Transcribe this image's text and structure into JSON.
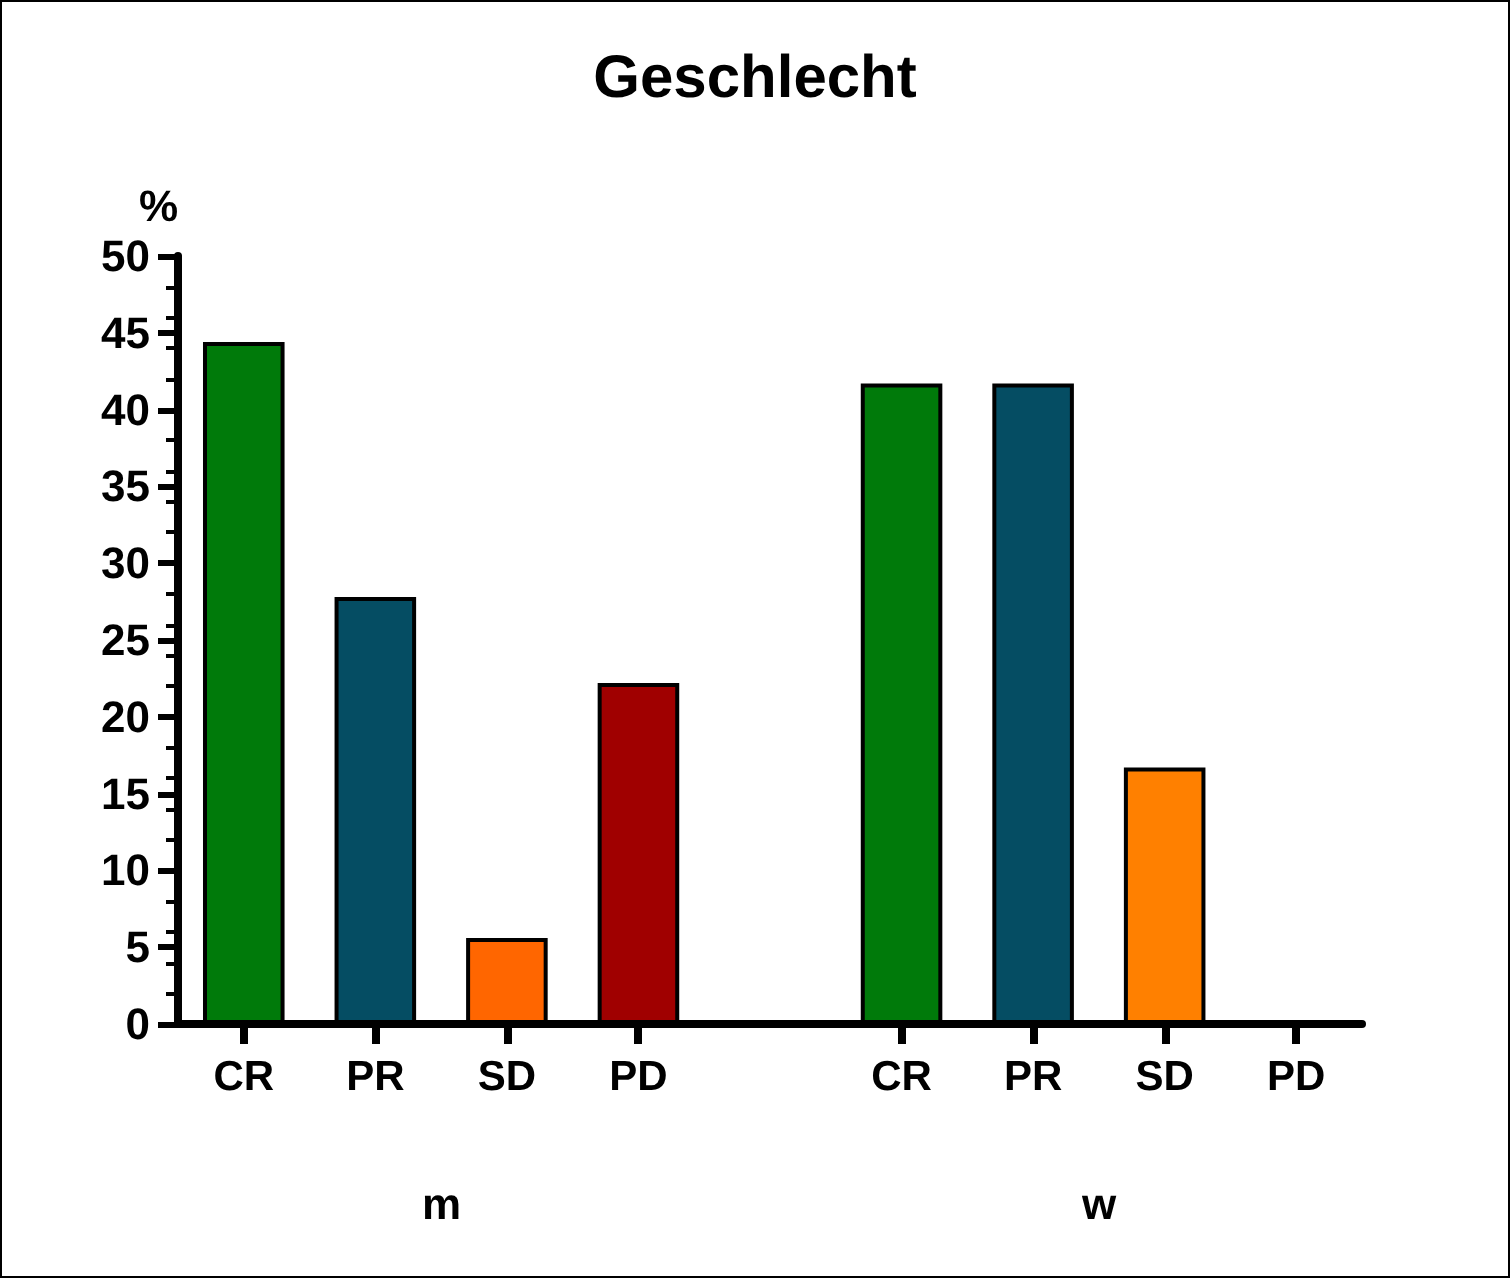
{
  "chart_data": {
    "type": "bar",
    "title": "Geschlecht",
    "ylabel": "%",
    "categories": [
      "CR",
      "PR",
      "SD",
      "PD",
      null,
      "CR",
      "PR",
      "SD",
      "PD"
    ],
    "values": [
      44.4,
      27.8,
      5.6,
      22.2,
      null,
      41.7,
      41.7,
      16.7,
      0
    ],
    "colors": [
      "#007a0a",
      "#054d63",
      "#ff6600",
      "#a00000",
      "#ffffff",
      "#007a0a",
      "#054d63",
      "#ff8000",
      "#a00000"
    ],
    "annotations": [
      "m",
      "w"
    ],
    "ylim": [
      0,
      50
    ],
    "yticks": [
      0,
      5,
      10,
      15,
      20,
      25,
      30,
      35,
      40,
      45,
      50
    ],
    "grid": false
  }
}
